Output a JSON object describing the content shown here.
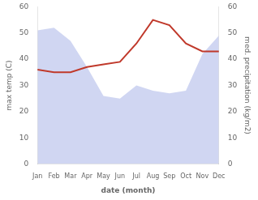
{
  "chart_data": {
    "type": "line",
    "categories": [
      "Jan",
      "Feb",
      "Mar",
      "Apr",
      "May",
      "Jun",
      "Jul",
      "Aug",
      "Sep",
      "Oct",
      "Nov",
      "Dec"
    ],
    "xlabel": "date (month)",
    "ylabel": "max temp (C)",
    "y2label": "med. precipitation (kg/m2)",
    "series": [
      {
        "type": "area",
        "color": "#aab4e8",
        "axis": "y2",
        "values": [
          51,
          52,
          47,
          37,
          26,
          25,
          30,
          28,
          27,
          28,
          42,
          49
        ]
      },
      {
        "type": "line",
        "color": "#c0392b",
        "values": [
          36,
          35,
          35,
          37,
          38,
          39,
          46,
          55,
          53,
          46,
          43,
          43
        ]
      }
    ],
    "ylim": [
      0,
      60
    ],
    "yticks": [
      0,
      10,
      20,
      30,
      40,
      50,
      60
    ],
    "y2lim": [
      0,
      60
    ],
    "y2ticks": [
      0,
      10,
      20,
      30,
      40,
      50,
      60
    ],
    "grid": false
  }
}
